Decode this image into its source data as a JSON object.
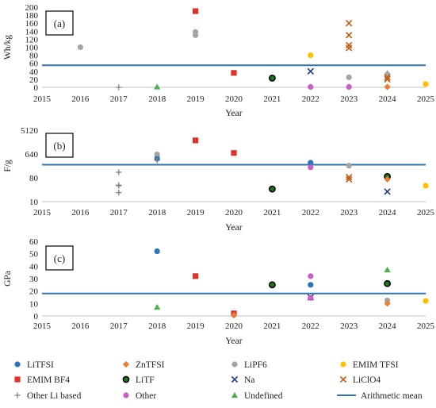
{
  "chart_data": [
    {
      "id": "a",
      "type": "scatter",
      "panel_label": "(a)",
      "xlabel": "Year",
      "ylabel": "Wh/kg",
      "xlim": [
        2015,
        2025
      ],
      "ylim": [
        0,
        200
      ],
      "yscale": "linear",
      "yticks": [
        0,
        20,
        40,
        60,
        80,
        100,
        120,
        140,
        160,
        180,
        200
      ],
      "ytick_labels": [
        "0",
        "20",
        "40",
        "60",
        "80",
        "100",
        "120",
        "140",
        "160",
        "180",
        "200"
      ],
      "mean": 55,
      "points": [
        {
          "x": 2016,
          "y": 100,
          "cat": "LiPF6"
        },
        {
          "x": 2017,
          "y": 0,
          "cat": "Other Li based"
        },
        {
          "x": 2018,
          "y": 1,
          "cat": "Undefined"
        },
        {
          "x": 2019,
          "y": 190,
          "cat": "EMIM BF4"
        },
        {
          "x": 2019,
          "y": 138,
          "cat": "LiPF6"
        },
        {
          "x": 2019,
          "y": 130,
          "cat": "LiPF6"
        },
        {
          "x": 2020,
          "y": 36,
          "cat": "EMIM BF4"
        },
        {
          "x": 2021,
          "y": 23,
          "cat": "LiTF"
        },
        {
          "x": 2022,
          "y": 80,
          "cat": "EMIM TFSI"
        },
        {
          "x": 2022,
          "y": 40,
          "cat": "Na"
        },
        {
          "x": 2022,
          "y": 1,
          "cat": "Other"
        },
        {
          "x": 2023,
          "y": 160,
          "cat": "LiClO4"
        },
        {
          "x": 2023,
          "y": 130,
          "cat": "LiClO4"
        },
        {
          "x": 2023,
          "y": 105,
          "cat": "LiClO4"
        },
        {
          "x": 2023,
          "y": 98,
          "cat": "LiClO4"
        },
        {
          "x": 2023,
          "y": 25,
          "cat": "LiPF6"
        },
        {
          "x": 2023,
          "y": 1,
          "cat": "Other"
        },
        {
          "x": 2024,
          "y": 35,
          "cat": "Undefined"
        },
        {
          "x": 2024,
          "y": 32,
          "cat": "LiPF6"
        },
        {
          "x": 2024,
          "y": 25,
          "cat": "LiClO4"
        },
        {
          "x": 2024,
          "y": 20,
          "cat": "LiClO4"
        },
        {
          "x": 2024,
          "y": 1,
          "cat": "ZnTFSI"
        },
        {
          "x": 2025,
          "y": 8,
          "cat": "EMIM TFSI"
        }
      ]
    },
    {
      "id": "b",
      "type": "scatter",
      "panel_label": "(b)",
      "xlabel": "Year",
      "ylabel": "F/g",
      "xlim": [
        2015,
        2025
      ],
      "ylim": [
        10,
        5120
      ],
      "yscale": "log2",
      "yticks": [
        10,
        80,
        640,
        5120
      ],
      "ytick_labels": [
        "10",
        "80",
        "640",
        "5120"
      ],
      "mean": 250,
      "points": [
        {
          "x": 2017,
          "y": 130,
          "cat": "Other Li based"
        },
        {
          "x": 2017,
          "y": 42,
          "cat": "Other Li based"
        },
        {
          "x": 2017,
          "y": 40,
          "cat": "Other Li based"
        },
        {
          "x": 2017,
          "y": 22,
          "cat": "Other Li based"
        },
        {
          "x": 2018,
          "y": 620,
          "cat": "LiPF6"
        },
        {
          "x": 2018,
          "y": 490,
          "cat": "LiPF6"
        },
        {
          "x": 2018,
          "y": 420,
          "cat": "LiTFSI"
        },
        {
          "x": 2018,
          "y": 370,
          "cat": "Other Li based"
        },
        {
          "x": 2019,
          "y": 2100,
          "cat": "EMIM BF4"
        },
        {
          "x": 2020,
          "y": 700,
          "cat": "EMIM BF4"
        },
        {
          "x": 2021,
          "y": 30,
          "cat": "LiTF"
        },
        {
          "x": 2022,
          "y": 300,
          "cat": "LiTFSI"
        },
        {
          "x": 2022,
          "y": 200,
          "cat": "Other"
        },
        {
          "x": 2023,
          "y": 230,
          "cat": "LiPF6"
        },
        {
          "x": 2023,
          "y": 85,
          "cat": "LiClO4"
        },
        {
          "x": 2023,
          "y": 70,
          "cat": "LiClO4"
        },
        {
          "x": 2024,
          "y": 90,
          "cat": "LiTF"
        },
        {
          "x": 2024,
          "y": 70,
          "cat": "ZnTFSI"
        },
        {
          "x": 2024,
          "y": 24,
          "cat": "Na"
        },
        {
          "x": 2025,
          "y": 40,
          "cat": "EMIM TFSI"
        }
      ]
    },
    {
      "id": "c",
      "type": "scatter",
      "panel_label": "(c)",
      "xlabel": "Year",
      "ylabel": "GPa",
      "xlim": [
        2015,
        2025
      ],
      "ylim": [
        0,
        60
      ],
      "yscale": "linear",
      "yticks": [
        0,
        10,
        20,
        30,
        40,
        50,
        60
      ],
      "ytick_labels": [
        "0",
        "10",
        "20",
        "30",
        "40",
        "50",
        "60"
      ],
      "mean": 18,
      "points": [
        {
          "x": 2018,
          "y": 52,
          "cat": "LiTFSI"
        },
        {
          "x": 2018,
          "y": 7,
          "cat": "Undefined"
        },
        {
          "x": 2019,
          "y": 32,
          "cat": "EMIM BF4"
        },
        {
          "x": 2020,
          "y": 2,
          "cat": "EMIM BF4"
        },
        {
          "x": 2020,
          "y": 0.5,
          "cat": "ZnTFSI"
        },
        {
          "x": 2021,
          "y": 25,
          "cat": "LiTF"
        },
        {
          "x": 2022,
          "y": 32,
          "cat": "Other"
        },
        {
          "x": 2022,
          "y": 25,
          "cat": "LiTFSI"
        },
        {
          "x": 2022,
          "y": 15,
          "cat": "Na"
        },
        {
          "x": 2022,
          "y": 14.5,
          "cat": "Other"
        },
        {
          "x": 2024,
          "y": 37,
          "cat": "Undefined"
        },
        {
          "x": 2024,
          "y": 26,
          "cat": "LiTF"
        },
        {
          "x": 2024,
          "y": 12.5,
          "cat": "LiPF6"
        },
        {
          "x": 2024,
          "y": 10,
          "cat": "ZnTFSI"
        },
        {
          "x": 2025,
          "y": 12,
          "cat": "EMIM TFSI"
        }
      ]
    }
  ],
  "x_tick_labels": [
    "2015",
    "2016",
    "2017",
    "2018",
    "2019",
    "2020",
    "2021",
    "2022",
    "2023",
    "2024",
    "2025"
  ],
  "legend": [
    {
      "key": "LiTFSI",
      "label": "LiTFSI",
      "marker": "circle",
      "color": "#2E75B6"
    },
    {
      "key": "ZnTFSI",
      "label": "ZnTFSI",
      "marker": "diamond",
      "color": "#ED7D31"
    },
    {
      "key": "LiPF6",
      "label": "LiPF6",
      "marker": "circle",
      "color": "#A5A5A5"
    },
    {
      "key": "EMIM TFSI",
      "label": "EMIM TFSI",
      "marker": "circle",
      "color": "#FFC000"
    },
    {
      "key": "EMIM BF4",
      "label": "EMIM BF4",
      "marker": "square",
      "color": "#E0312B"
    },
    {
      "key": "LiTF",
      "label": "LiTF",
      "marker": "circle-ring",
      "color": "#000000"
    },
    {
      "key": "Na",
      "label": "Na",
      "marker": "x",
      "color": "#1F3A93"
    },
    {
      "key": "LiClO4",
      "label": "LiClO4",
      "marker": "x",
      "color": "#C55A11"
    },
    {
      "key": "Other Li based",
      "label": "Other Li based",
      "marker": "plus",
      "color": "#7F7F7F"
    },
    {
      "key": "Other",
      "label": "Other",
      "marker": "circle",
      "color": "#CC5DC6"
    },
    {
      "key": "Undefined",
      "label": "Undefined",
      "marker": "triangle",
      "color": "#4CAF50"
    },
    {
      "key": "Arithmetic mean",
      "label": "Arithmetic mean",
      "marker": "line",
      "color": "#2E75B6"
    }
  ],
  "mean_color": "#2E75B6"
}
